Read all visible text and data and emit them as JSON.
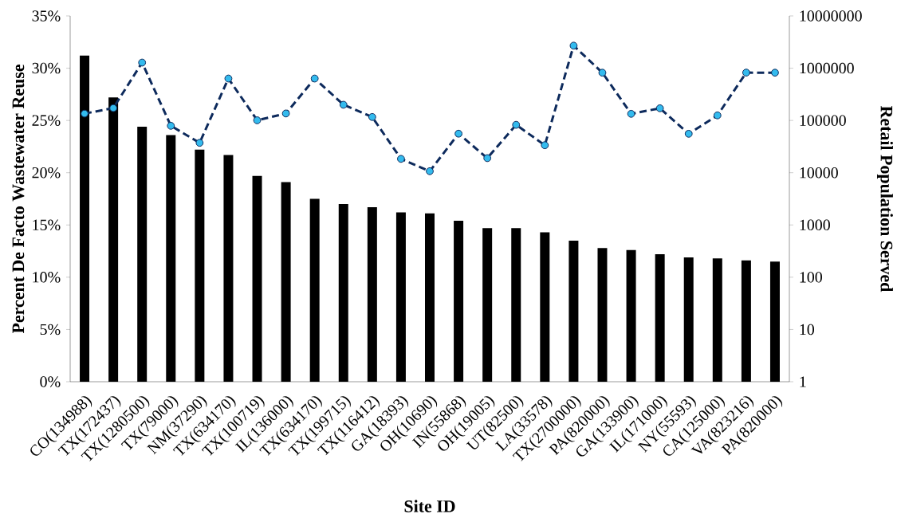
{
  "chart_data": {
    "type": "bar",
    "xlabel": "Site ID",
    "ylabel": "Percent De Facto Wastewater Reuse",
    "y2label": "Retail Population Served",
    "categories": [
      "CO(134988)",
      "TX(172437)",
      "TX(1280500)",
      "TX(79000)",
      "NM(37290)",
      "TX(634170)",
      "TX(100719)",
      "IL(136000)",
      "TX(634170)",
      "TX(199715)",
      "TX(116412)",
      "GA(18393)",
      "OH(10690)",
      "IN(55868)",
      "OH(19005)",
      "UT(82500)",
      "LA(33578)",
      "TX(2700000)",
      "PA(820000)",
      "GA(133900)",
      "IL(171000)",
      "NY(55593)",
      "CA(125000)",
      "VA(823216)",
      "PA(820000)"
    ],
    "series": [
      {
        "color": "#000000",
        "values": [
          31.2,
          27.2,
          24.4,
          23.6,
          22.2,
          21.7,
          19.7,
          19.1,
          17.5,
          17.0,
          16.7,
          16.2,
          16.1,
          15.4,
          14.7,
          14.7,
          14.3,
          13.5,
          12.8,
          12.6,
          12.2,
          11.9,
          11.8,
          11.6,
          11.5
        ]
      },
      {
        "type": "line",
        "axis": "y2",
        "color": "#0d2a5c",
        "values": [
          134988,
          172437,
          1280500,
          79000,
          37290,
          634170,
          100719,
          136000,
          634170,
          199715,
          116412,
          18393,
          10690,
          55868,
          19005,
          82500,
          33578,
          2700000,
          820000,
          133900,
          171000,
          55593,
          125000,
          823216,
          820000
        ]
      }
    ],
    "marker": "circle",
    "line_style": "dashed",
    "log": "y2",
    "grid": false,
    "legend": false,
    "ylim": [
      0,
      35
    ],
    "yticks": [
      {
        "value": 0,
        "label": "0%"
      },
      {
        "value": 5,
        "label": "5%"
      },
      {
        "value": 10,
        "label": "10%"
      },
      {
        "value": 15,
        "label": "15%"
      },
      {
        "value": 20,
        "label": "20%"
      },
      {
        "value": 25,
        "label": "25%"
      },
      {
        "value": 30,
        "label": "30%"
      },
      {
        "value": 35,
        "label": "35%"
      }
    ],
    "y2lim": [
      1,
      10000000
    ],
    "y2ticks": [
      1,
      10,
      100,
      1000,
      10000,
      100000,
      1000000,
      10000000
    ]
  }
}
